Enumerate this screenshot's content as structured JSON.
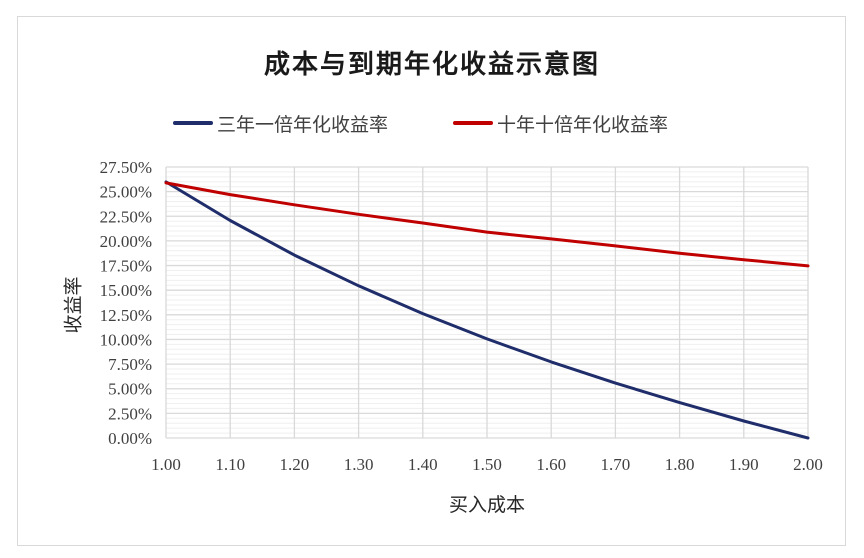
{
  "chart_data": {
    "type": "line",
    "title": "成本与到期年化收益示意图",
    "xlabel": "买入成本",
    "ylabel": "收益率",
    "x": [
      1.0,
      1.1,
      1.2,
      1.3,
      1.4,
      1.5,
      1.6,
      1.7,
      1.8,
      1.9,
      2.0
    ],
    "x_tick_labels": [
      "1.00",
      "1.10",
      "1.20",
      "1.30",
      "1.40",
      "1.50",
      "1.60",
      "1.70",
      "1.80",
      "1.90",
      "2.00"
    ],
    "xlim": [
      1.0,
      2.0
    ],
    "ylim": [
      0,
      0.275
    ],
    "y_tick_labels": [
      "0.00%",
      "2.50%",
      "5.00%",
      "7.50%",
      "10.00%",
      "12.50%",
      "15.00%",
      "17.50%",
      "20.00%",
      "22.50%",
      "25.00%",
      "27.50%"
    ],
    "y_ticks": [
      0,
      0.025,
      0.05,
      0.075,
      0.1,
      0.125,
      0.15,
      0.175,
      0.2,
      0.225,
      0.25,
      0.275
    ],
    "grid": {
      "major": true,
      "minor": true
    },
    "legend_position": "top",
    "series": [
      {
        "name": "三年一倍年化收益率",
        "color": "#1f2d6b",
        "values": [
          0.2599,
          0.2207,
          0.1856,
          0.1544,
          0.1262,
          0.1006,
          0.0772,
          0.0557,
          0.0359,
          0.0173,
          0.0
        ]
      },
      {
        "name": "十年十倍年化收益率",
        "color": "#c00000",
        "values": [
          0.2589,
          0.247,
          0.2366,
          0.227,
          0.2182,
          0.2089,
          0.202,
          0.1949,
          0.1874,
          0.1809,
          0.1746
        ]
      }
    ]
  },
  "title": "成本与到期年化收益示意图",
  "legend": {
    "items": [
      {
        "label": "三年一倍年化收益率",
        "color": "#1f2d6b"
      },
      {
        "label": "十年十倍年化收益率",
        "color": "#c00000"
      }
    ]
  },
  "axes": {
    "xlabel": "买入成本",
    "ylabel": "收益率"
  }
}
